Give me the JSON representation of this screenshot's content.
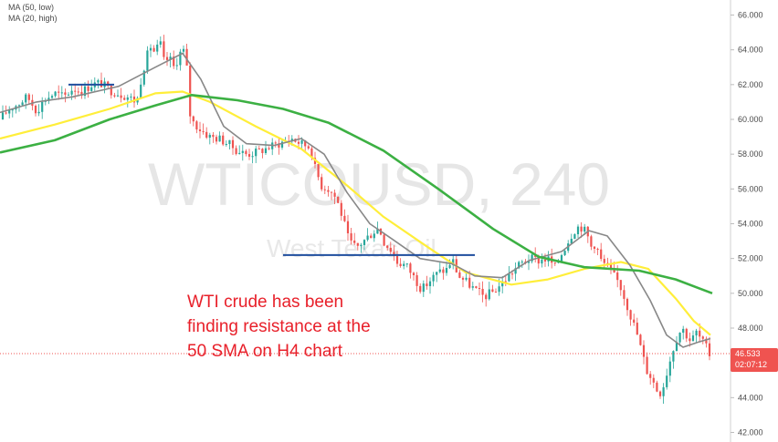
{
  "chart_data": {
    "type": "candlestick",
    "symbol": "WTICOUSD",
    "interval": "240",
    "watermark_title": "WTICOUSD, 240",
    "watermark_subtitle": "West Texas Oil",
    "legend": [
      {
        "label": "MA (50, low)",
        "color": "#ffd600"
      },
      {
        "label": "MA (20, high)",
        "color": "#7f7f7f"
      }
    ],
    "annotation_lines": [
      "WTI crude has been",
      "finding resistance at the",
      "50 SMA on H4 chart"
    ],
    "ylim": [
      42.0,
      66.0
    ],
    "yticks": [
      "42.000",
      "44.000",
      "46.000",
      "48.000",
      "50.000",
      "52.000",
      "54.000",
      "56.000",
      "58.000",
      "60.000",
      "62.000",
      "64.000",
      "66.000"
    ],
    "last_price": "46.533",
    "countdown": "02:07:12",
    "colors": {
      "up": "#26a69a",
      "down": "#ef5350",
      "ma_yellow": "#ffee3a",
      "ma_grey": "#888888",
      "ma_green": "#3cb043",
      "level_line": "#1f4e9e",
      "annotation": "#e8202a",
      "price_badge": "#ef5350"
    },
    "close_path": [
      [
        0,
        60.0
      ],
      [
        10,
        60.6
      ],
      [
        20,
        60.9
      ],
      [
        30,
        61.3
      ],
      [
        40,
        60.5
      ],
      [
        50,
        61.2
      ],
      [
        60,
        61.5
      ],
      [
        70,
        61.3
      ],
      [
        80,
        61.8
      ],
      [
        90,
        61.6
      ],
      [
        100,
        62.0
      ],
      [
        110,
        62.1
      ],
      [
        120,
        61.7
      ],
      [
        130,
        61.5
      ],
      [
        140,
        61.3
      ],
      [
        150,
        61.0
      ],
      [
        155,
        62.5
      ],
      [
        160,
        63.5
      ],
      [
        165,
        64.2
      ],
      [
        170,
        63.8
      ],
      [
        175,
        64.5
      ],
      [
        180,
        63.2
      ],
      [
        185,
        63.6
      ],
      [
        190,
        63.0
      ],
      [
        195,
        63.5
      ],
      [
        200,
        64.2
      ],
      [
        205,
        62.8
      ],
      [
        208,
        60.3
      ],
      [
        212,
        59.8
      ],
      [
        220,
        59.4
      ],
      [
        230,
        59.0
      ],
      [
        240,
        58.9
      ],
      [
        250,
        58.6
      ],
      [
        260,
        58.2
      ],
      [
        270,
        58.0
      ],
      [
        280,
        58.1
      ],
      [
        290,
        58.3
      ],
      [
        300,
        58.5
      ],
      [
        310,
        58.7
      ],
      [
        320,
        58.9
      ],
      [
        330,
        58.6
      ],
      [
        340,
        58.4
      ],
      [
        345,
        57.2
      ],
      [
        352,
        56.2
      ],
      [
        360,
        56.0
      ],
      [
        368,
        55.5
      ],
      [
        375,
        54.4
      ],
      [
        382,
        53.0
      ],
      [
        390,
        52.6
      ],
      [
        400,
        53.1
      ],
      [
        410,
        53.6
      ],
      [
        415,
        53.8
      ],
      [
        420,
        53.0
      ],
      [
        428,
        52.5
      ],
      [
        435,
        51.8
      ],
      [
        445,
        51.6
      ],
      [
        455,
        50.8
      ],
      [
        462,
        50.2
      ],
      [
        470,
        50.7
      ],
      [
        480,
        51.2
      ],
      [
        490,
        51.4
      ],
      [
        495,
        52.0
      ],
      [
        502,
        51.0
      ],
      [
        512,
        50.6
      ],
      [
        520,
        50.2
      ],
      [
        530,
        49.8
      ],
      [
        540,
        50.1
      ],
      [
        550,
        50.6
      ],
      [
        560,
        51.2
      ],
      [
        570,
        51.7
      ],
      [
        580,
        52.0
      ],
      [
        590,
        51.9
      ],
      [
        600,
        52.0
      ],
      [
        608,
        51.5
      ],
      [
        615,
        52.3
      ],
      [
        622,
        53.0
      ],
      [
        628,
        53.6
      ],
      [
        635,
        53.9
      ],
      [
        642,
        53.5
      ],
      [
        648,
        52.6
      ],
      [
        652,
        52.9
      ],
      [
        658,
        51.9
      ],
      [
        665,
        51.5
      ],
      [
        672,
        51.0
      ],
      [
        678,
        50.6
      ],
      [
        685,
        49.6
      ],
      [
        692,
        48.5
      ],
      [
        698,
        47.6
      ],
      [
        703,
        46.6
      ],
      [
        708,
        45.6
      ],
      [
        713,
        45.2
      ],
      [
        718,
        44.6
      ],
      [
        722,
        44.2
      ],
      [
        727,
        44.8
      ],
      [
        732,
        45.8
      ],
      [
        737,
        46.8
      ],
      [
        742,
        47.6
      ],
      [
        747,
        48.0
      ],
      [
        752,
        47.6
      ],
      [
        757,
        47.2
      ],
      [
        762,
        47.8
      ],
      [
        767,
        47.4
      ],
      [
        772,
        47.0
      ],
      [
        777,
        46.5
      ]
    ],
    "series": [
      {
        "name": "MA (50, low)",
        "points": [
          [
            0,
            58.9
          ],
          [
            60,
            59.7
          ],
          [
            120,
            60.6
          ],
          [
            170,
            61.5
          ],
          [
            200,
            61.6
          ],
          [
            230,
            61.0
          ],
          [
            280,
            59.6
          ],
          [
            330,
            58.3
          ],
          [
            380,
            56.2
          ],
          [
            420,
            54.4
          ],
          [
            470,
            52.6
          ],
          [
            510,
            51.2
          ],
          [
            560,
            50.5
          ],
          [
            600,
            50.8
          ],
          [
            640,
            51.4
          ],
          [
            680,
            51.8
          ],
          [
            710,
            51.4
          ],
          [
            740,
            49.7
          ],
          [
            760,
            48.4
          ],
          [
            778,
            47.6
          ]
        ]
      },
      {
        "name": "MA (20, high)",
        "points": [
          [
            0,
            60.4
          ],
          [
            40,
            61.0
          ],
          [
            80,
            61.3
          ],
          [
            130,
            61.9
          ],
          [
            170,
            63.0
          ],
          [
            200,
            63.8
          ],
          [
            220,
            62.3
          ],
          [
            245,
            59.6
          ],
          [
            270,
            58.6
          ],
          [
            300,
            58.5
          ],
          [
            330,
            58.9
          ],
          [
            355,
            58.0
          ],
          [
            380,
            55.8
          ],
          [
            405,
            54.0
          ],
          [
            430,
            53.1
          ],
          [
            460,
            52.0
          ],
          [
            495,
            51.7
          ],
          [
            520,
            51.0
          ],
          [
            550,
            50.9
          ],
          [
            580,
            51.9
          ],
          [
            615,
            52.4
          ],
          [
            645,
            53.6
          ],
          [
            665,
            53.3
          ],
          [
            690,
            51.6
          ],
          [
            712,
            49.6
          ],
          [
            730,
            47.6
          ],
          [
            748,
            46.9
          ],
          [
            765,
            47.2
          ],
          [
            778,
            47.4
          ]
        ]
      },
      {
        "name": "",
        "points": [
          [
            0,
            58.1
          ],
          [
            60,
            58.8
          ],
          [
            120,
            60.0
          ],
          [
            170,
            60.8
          ],
          [
            210,
            61.4
          ],
          [
            260,
            61.1
          ],
          [
            310,
            60.6
          ],
          [
            360,
            59.8
          ],
          [
            420,
            58.2
          ],
          [
            480,
            56.0
          ],
          [
            540,
            53.7
          ],
          [
            590,
            52.1
          ],
          [
            640,
            51.5
          ],
          [
            700,
            51.3
          ],
          [
            740,
            50.8
          ],
          [
            780,
            50.0
          ]
        ]
      }
    ],
    "levels": [
      {
        "value": 62.0,
        "x_start": 75,
        "x_end": 125
      },
      {
        "value": 52.2,
        "x_start": 310,
        "x_end": 520
      }
    ]
  }
}
